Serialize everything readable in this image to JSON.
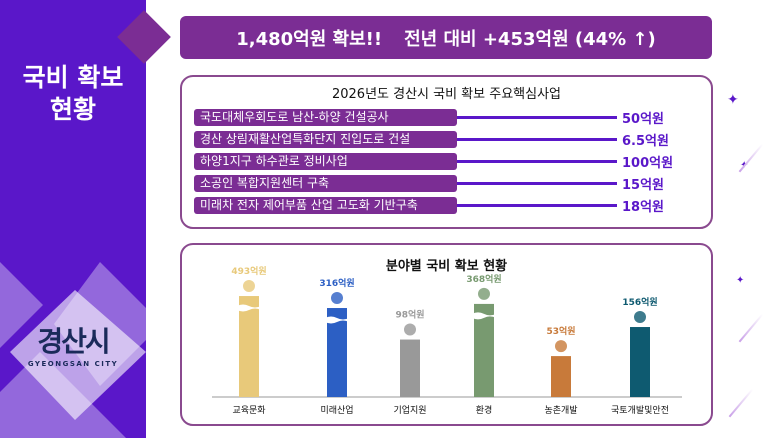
{
  "sidebar": {
    "title_line1": "국비 확보",
    "title_line2": "현황",
    "logo_text": "경산시",
    "logo_sub": "GYEONGSAN CITY"
  },
  "banner": {
    "total": "1,480억원 확보!!",
    "change": "전년 대비 +453억원 (44% ↑)"
  },
  "projects": {
    "title": "2026년도 경산시 국비 확보 주요핵심사업",
    "items": [
      {
        "name": "국도대체우회도로 남산-하양 건설공사",
        "amount": "50억원"
      },
      {
        "name": "경산 상림재활산업특화단지 진입도로 건설",
        "amount": "6.5억원"
      },
      {
        "name": "하양1지구 하수관로 정비사업",
        "amount": "100억원"
      },
      {
        "name": "소공인 복합지원센터 구축",
        "amount": "15억원"
      },
      {
        "name": "미래차 전자 제어부품 산업 고도화 기반구축",
        "amount": "18억원"
      }
    ]
  },
  "chart_data": {
    "type": "bar",
    "title": "분야별 국비 확보 현황",
    "unit": "억원",
    "broken_axis": true,
    "categories": [
      "교육문화",
      "미래산업",
      "기업지원",
      "환경",
      "농촌개발",
      "국토개발및안전"
    ],
    "values": [
      493,
      316,
      98,
      368,
      53,
      156
    ],
    "labels": [
      "493억원",
      "316억원",
      "98억원",
      "368억원",
      "53억원",
      "156억원"
    ],
    "icons": [
      "book-icon",
      "ai-icon",
      "factory-icon",
      "tree-icon",
      "farm-icon",
      "shield-icon"
    ],
    "colors": [
      "#e8c97a",
      "#2c5fc4",
      "#999999",
      "#789a70",
      "#c87a3a",
      "#0e5a70"
    ]
  }
}
